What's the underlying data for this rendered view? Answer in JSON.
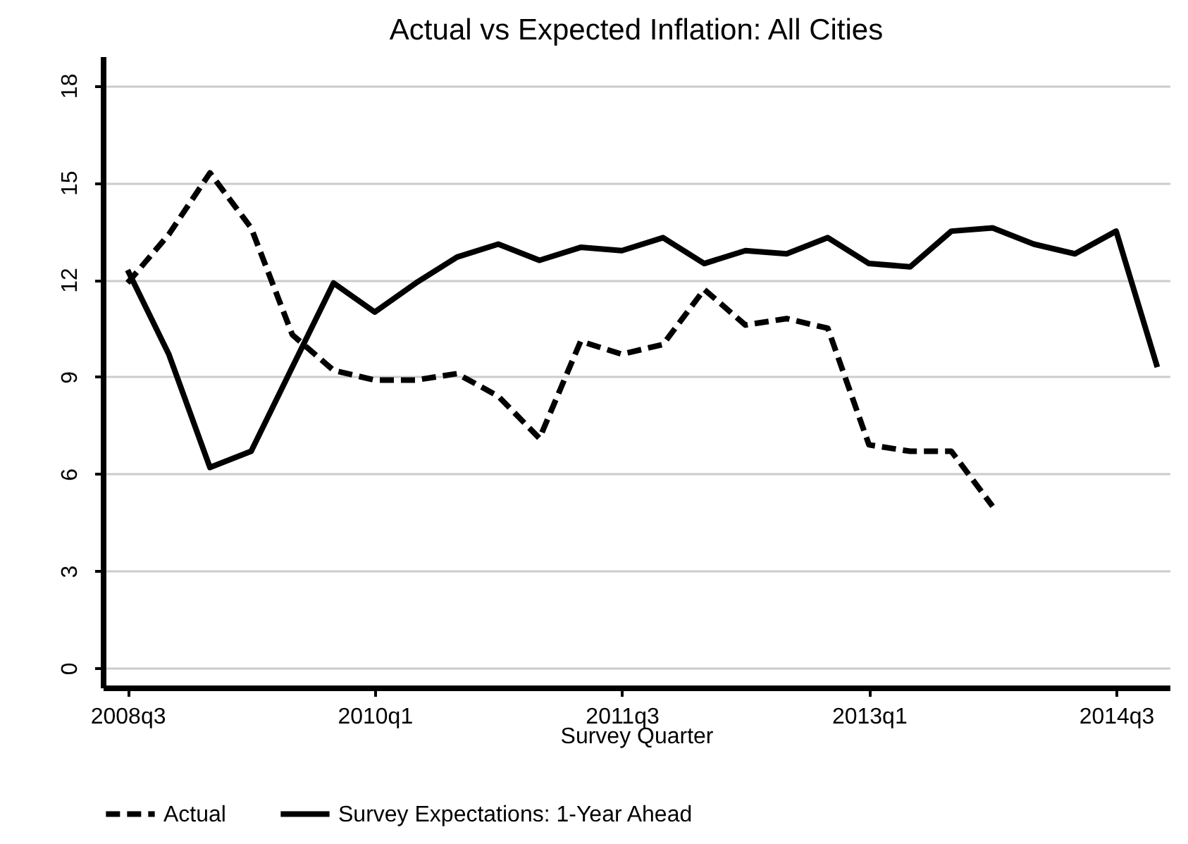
{
  "chart_data": {
    "type": "line",
    "title": "Actual vs Expected Inflation: All Cities",
    "xlabel": "Survey Quarter",
    "categories": [
      "2008q3",
      null,
      null,
      null,
      null,
      null,
      "2010q1",
      null,
      null,
      null,
      null,
      null,
      "2011q3",
      null,
      null,
      null,
      null,
      null,
      "2013q1",
      null,
      null,
      null,
      null,
      null,
      "2014q3",
      null
    ],
    "series": [
      {
        "name": "Actual",
        "color": "#000000",
        "line_style": "dashed",
        "values": [
          11.9,
          13.4,
          15.3,
          13.6,
          10.3,
          9.2,
          8.9,
          8.9,
          9.1,
          8.4,
          7.1,
          10.1,
          9.7,
          10.0,
          11.7,
          10.6,
          10.8,
          10.5,
          6.9,
          6.7,
          6.7,
          5.0,
          null,
          null,
          null,
          null
        ]
      },
      {
        "name": "Survey Expectations: 1-Year Ahead",
        "color": "#000000",
        "line_style": "solid",
        "values": [
          12.3,
          9.7,
          6.2,
          6.7,
          9.3,
          11.9,
          11.0,
          11.9,
          12.7,
          13.1,
          12.6,
          13.0,
          12.9,
          13.3,
          12.5,
          12.9,
          12.8,
          13.3,
          12.5,
          12.4,
          13.5,
          13.6,
          13.1,
          12.8,
          13.5,
          9.3
        ]
      }
    ],
    "ylim": [
      -0.6,
      18.9
    ],
    "yticks": [
      0,
      3,
      6,
      9,
      12,
      15,
      18
    ],
    "grid": "y",
    "legend": "bottom"
  }
}
